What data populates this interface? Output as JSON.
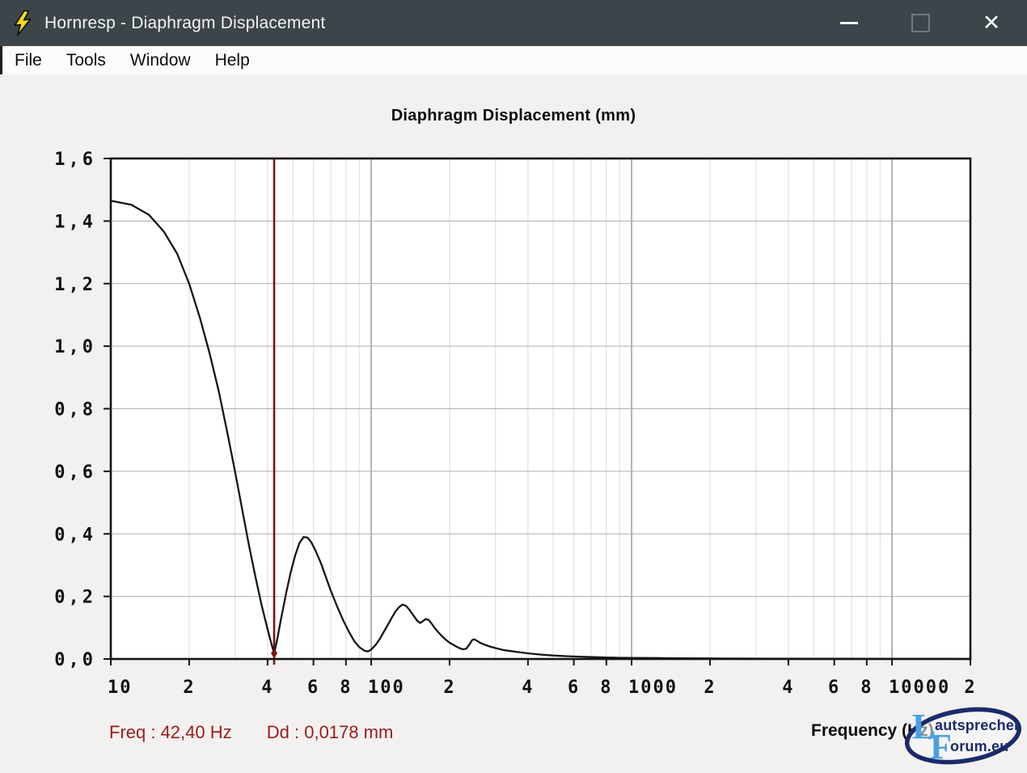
{
  "window": {
    "title": "Hornresp - Diaphragm Displacement",
    "controls": {
      "minimize": "minimize",
      "maximize": "maximize",
      "close": "✕"
    }
  },
  "menu": {
    "items": [
      "File",
      "Tools",
      "Window",
      "Help"
    ]
  },
  "status": {
    "freq_text": "Freq :  42,40 Hz",
    "dd_text": "Dd :  0,0178 mm"
  },
  "watermark": {
    "letter_l": "L",
    "word_1": "autsprecher",
    "letter_f": "F",
    "word_2": "orum.eu"
  },
  "colors": {
    "titlebar_bg": "#3c4549",
    "titlebar_text": "#f4f4f4",
    "menubar_bg": "#fcfbfb",
    "body_bg": "#f3f1ef",
    "plot_bg": "#ffffff",
    "axis": "#141414",
    "grid_h": "#b1adab",
    "grid_minor": "#e3e1e0",
    "grid_major": "#8f8b8a",
    "curve": "#161616",
    "cursor": "#7c1315",
    "status_text": "#9c1b1b",
    "label_text": "#111111",
    "watermark_navy": "#1b2b6b",
    "watermark_blue": "#4aa0e4",
    "bolt_yellow": "#f2dc1c"
  },
  "chart_data": {
    "type": "line",
    "title": "Diaphragm Displacement (mm)",
    "xlabel": "Frequency (Hz)",
    "x_scale": "log",
    "xlim": [
      10,
      20000
    ],
    "ylim": [
      0,
      1.6
    ],
    "grid": true,
    "y_ticks": [
      {
        "v": 0.0,
        "label": "0,0"
      },
      {
        "v": 0.2,
        "label": "0,2"
      },
      {
        "v": 0.4,
        "label": "0,4"
      },
      {
        "v": 0.6,
        "label": "0,6"
      },
      {
        "v": 0.8,
        "label": "0,8"
      },
      {
        "v": 1.0,
        "label": "1,0"
      },
      {
        "v": 1.2,
        "label": "1,2"
      },
      {
        "v": 1.4,
        "label": "1,4"
      },
      {
        "v": 1.6,
        "label": "1,6"
      }
    ],
    "x_ticks": [
      {
        "f": 10,
        "label": "10",
        "major": true
      },
      {
        "f": 20,
        "label": "2"
      },
      {
        "f": 40,
        "label": "4"
      },
      {
        "f": 60,
        "label": "6"
      },
      {
        "f": 80,
        "label": "8"
      },
      {
        "f": 100,
        "label": "100",
        "major": true
      },
      {
        "f": 200,
        "label": "2"
      },
      {
        "f": 400,
        "label": "4"
      },
      {
        "f": 600,
        "label": "6"
      },
      {
        "f": 800,
        "label": "8"
      },
      {
        "f": 1000,
        "label": "1000",
        "major": true
      },
      {
        "f": 2000,
        "label": "2"
      },
      {
        "f": 4000,
        "label": "4"
      },
      {
        "f": 6000,
        "label": "6"
      },
      {
        "f": 8000,
        "label": "8"
      },
      {
        "f": 10000,
        "label": "10000",
        "major": true
      },
      {
        "f": 20000,
        "label": "2"
      }
    ],
    "x_major_gridlines": [
      100,
      1000,
      10000
    ],
    "cursor": {
      "freq": 42.4,
      "value": 0.018
    },
    "series": [
      {
        "name": "Diaphragm displacement (mm)",
        "points": [
          [
            10,
            1.465
          ],
          [
            12,
            1.452
          ],
          [
            14,
            1.42
          ],
          [
            16,
            1.366
          ],
          [
            18,
            1.295
          ],
          [
            20,
            1.2
          ],
          [
            22,
            1.09
          ],
          [
            24,
            0.975
          ],
          [
            26,
            0.855
          ],
          [
            28,
            0.725
          ],
          [
            30,
            0.6
          ],
          [
            32,
            0.475
          ],
          [
            34,
            0.36
          ],
          [
            36,
            0.26
          ],
          [
            38,
            0.17
          ],
          [
            40,
            0.095
          ],
          [
            41.5,
            0.045
          ],
          [
            42.4,
            0.018
          ],
          [
            43.5,
            0.06
          ],
          [
            45,
            0.125
          ],
          [
            47,
            0.205
          ],
          [
            49,
            0.275
          ],
          [
            51,
            0.33
          ],
          [
            53,
            0.37
          ],
          [
            55,
            0.39
          ],
          [
            57,
            0.388
          ],
          [
            59,
            0.372
          ],
          [
            61,
            0.348
          ],
          [
            64,
            0.308
          ],
          [
            67,
            0.262
          ],
          [
            70,
            0.218
          ],
          [
            74,
            0.168
          ],
          [
            78,
            0.124
          ],
          [
            82,
            0.088
          ],
          [
            86,
            0.058
          ],
          [
            90,
            0.038
          ],
          [
            94,
            0.027
          ],
          [
            97,
            0.024
          ],
          [
            100,
            0.03
          ],
          [
            104,
            0.045
          ],
          [
            108,
            0.065
          ],
          [
            112,
            0.088
          ],
          [
            116,
            0.11
          ],
          [
            120,
            0.132
          ],
          [
            124,
            0.152
          ],
          [
            128,
            0.166
          ],
          [
            132,
            0.174
          ],
          [
            136,
            0.17
          ],
          [
            140,
            0.158
          ],
          [
            145,
            0.14
          ],
          [
            150,
            0.123
          ],
          [
            154,
            0.115
          ],
          [
            158,
            0.121
          ],
          [
            162,
            0.128
          ],
          [
            166,
            0.125
          ],
          [
            170,
            0.115
          ],
          [
            175,
            0.1
          ],
          [
            180,
            0.088
          ],
          [
            186,
            0.075
          ],
          [
            193,
            0.062
          ],
          [
            200,
            0.052
          ],
          [
            210,
            0.042
          ],
          [
            218,
            0.035
          ],
          [
            225,
            0.031
          ],
          [
            232,
            0.033
          ],
          [
            238,
            0.046
          ],
          [
            244,
            0.06
          ],
          [
            248,
            0.063
          ],
          [
            254,
            0.059
          ],
          [
            262,
            0.052
          ],
          [
            272,
            0.046
          ],
          [
            285,
            0.04
          ],
          [
            300,
            0.035
          ],
          [
            320,
            0.029
          ],
          [
            345,
            0.025
          ],
          [
            375,
            0.021
          ],
          [
            410,
            0.017
          ],
          [
            450,
            0.014
          ],
          [
            500,
            0.011
          ],
          [
            560,
            0.009
          ],
          [
            630,
            0.0075
          ],
          [
            710,
            0.006
          ],
          [
            800,
            0.005
          ],
          [
            900,
            0.004
          ],
          [
            1000,
            0.0035
          ],
          [
            1200,
            0.003
          ],
          [
            1500,
            0.0024
          ],
          [
            2000,
            0.0019
          ],
          [
            3000,
            0.0014
          ],
          [
            4500,
            0.001
          ],
          [
            7000,
            0.0007
          ],
          [
            11000,
            0.0005
          ],
          [
            20000,
            0.0003
          ]
        ]
      }
    ]
  }
}
